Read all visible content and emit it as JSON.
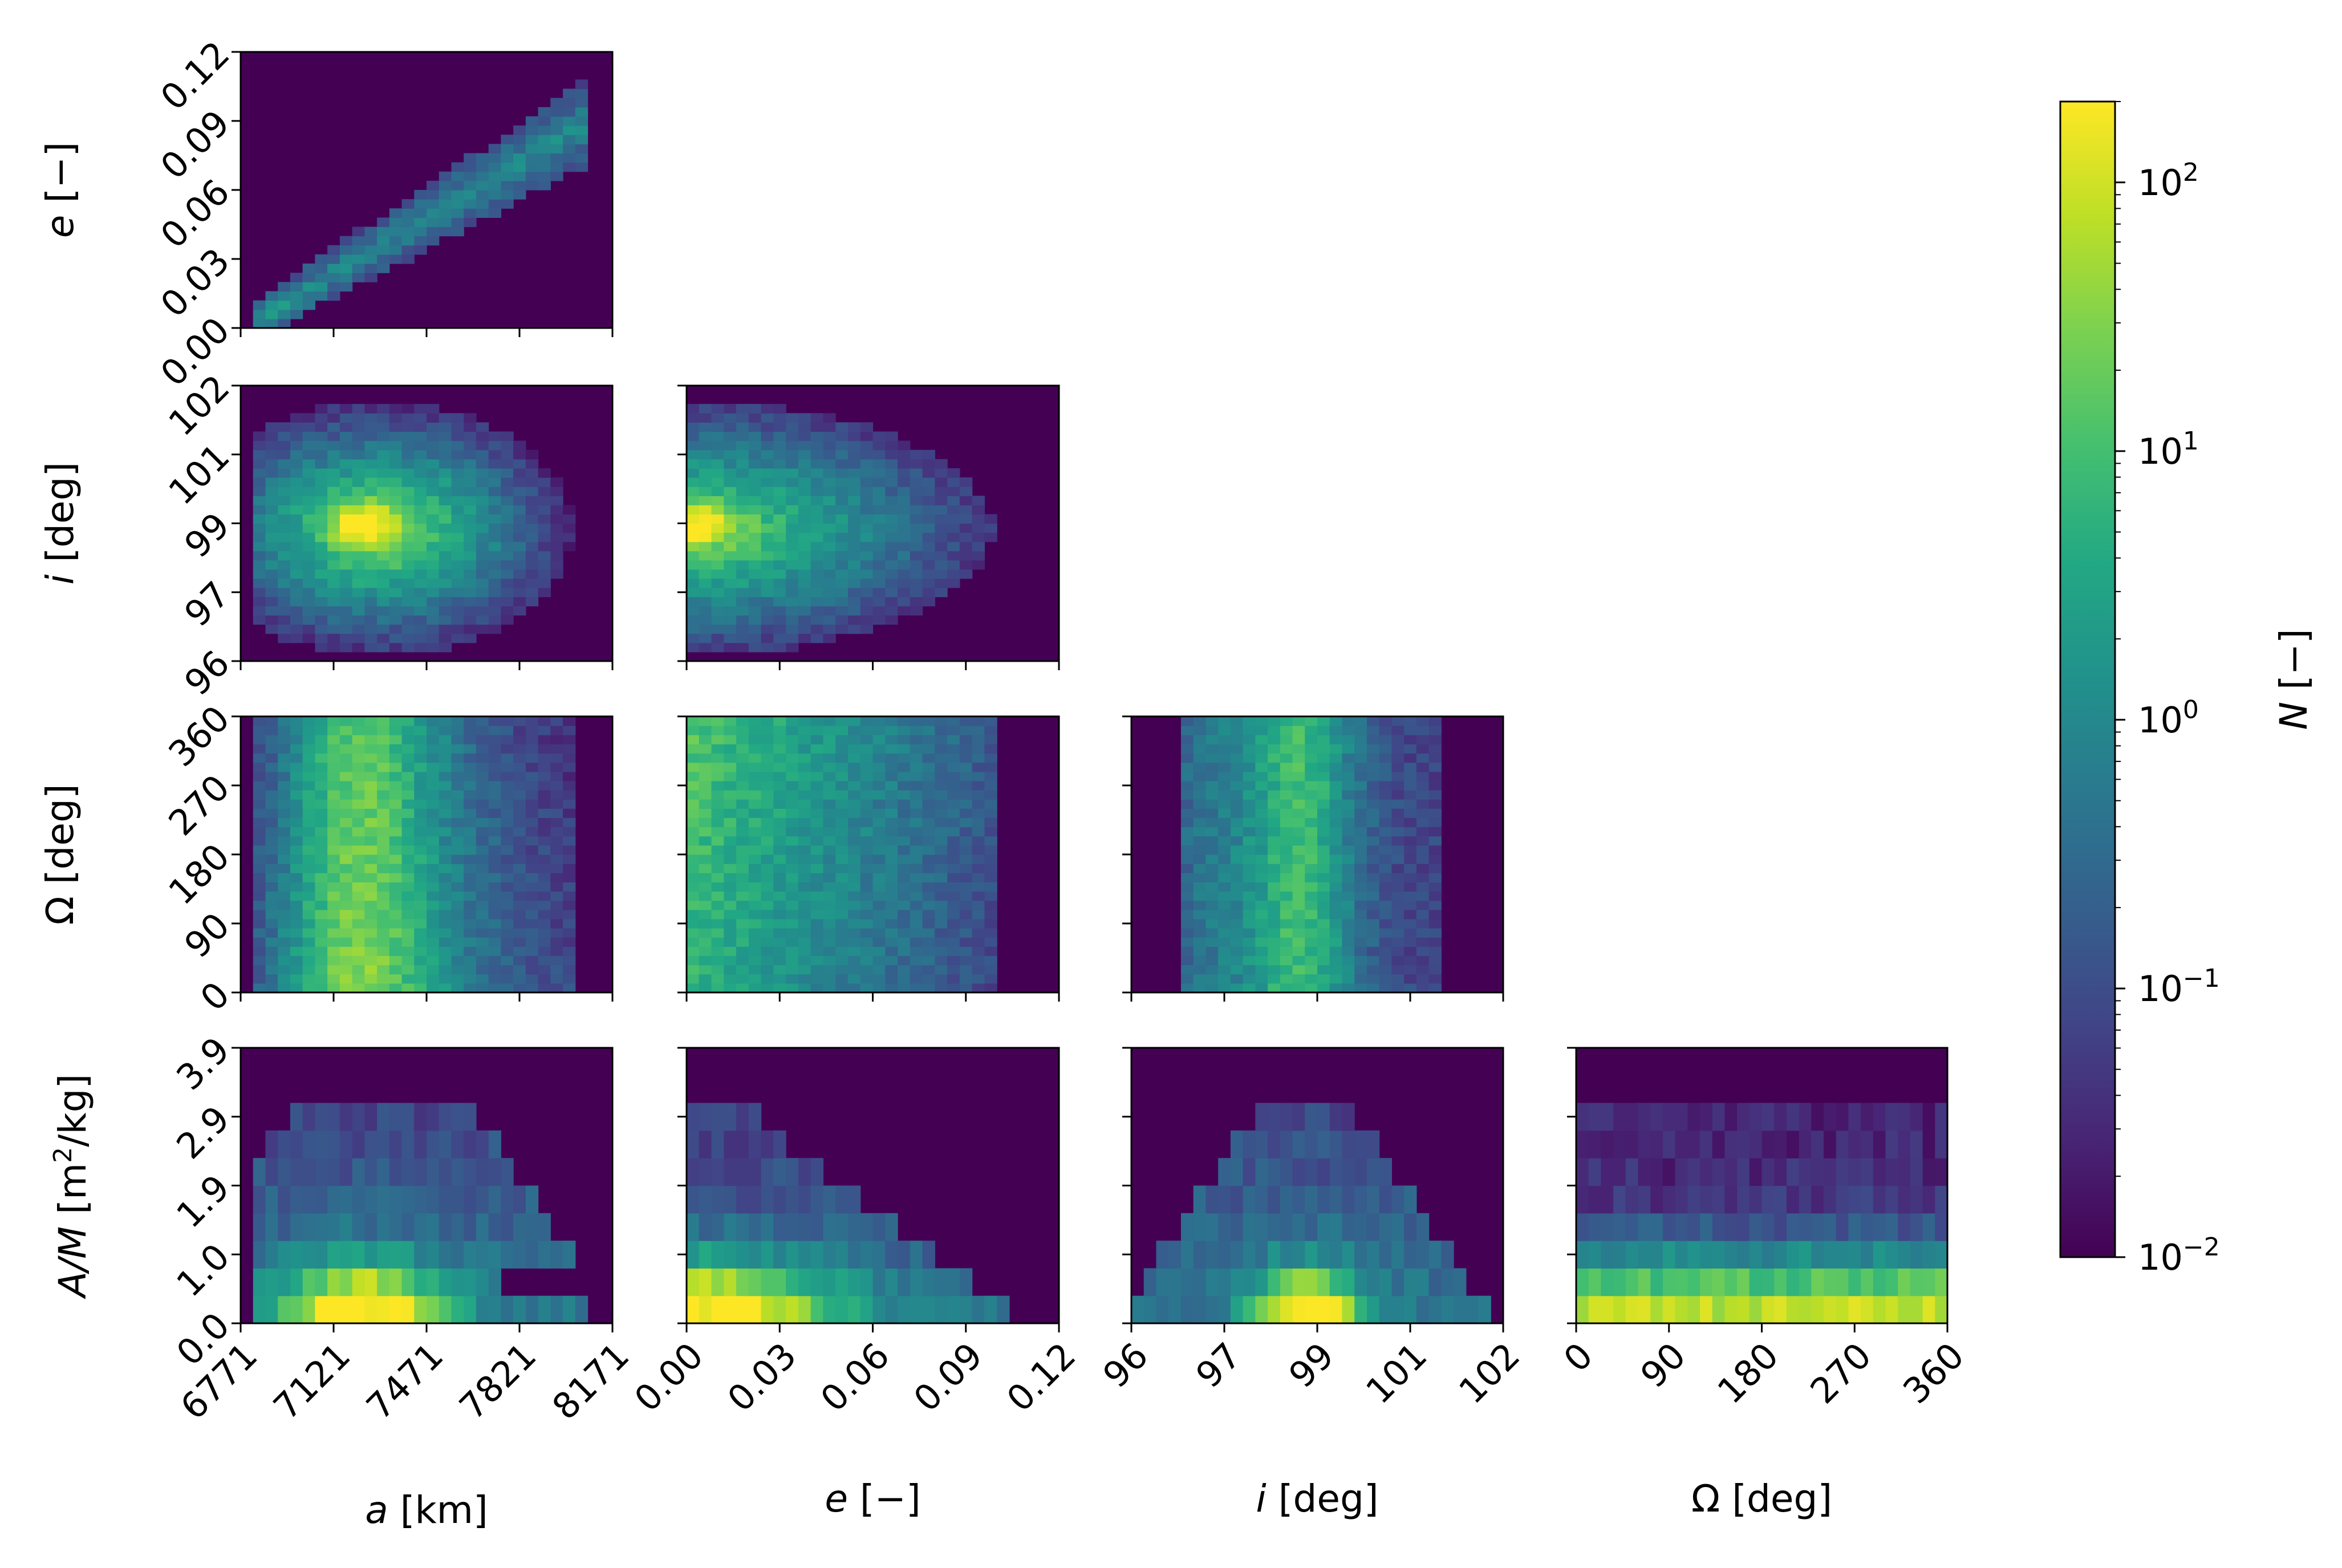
{
  "chart_data": {
    "type": "heatmap",
    "layout": "corner-plot",
    "variables": [
      {
        "key": "a",
        "label_italic": "a",
        "label_rest": " [km]",
        "range": [
          6771,
          8171
        ],
        "ticks": [
          "6771",
          "7121",
          "7471",
          "7821",
          "8171"
        ]
      },
      {
        "key": "e",
        "label_italic": "e",
        "label_rest": " [−]",
        "range": [
          0.0,
          0.12
        ],
        "ticks": [
          "0.00",
          "0.03",
          "0.06",
          "0.09",
          "0.12"
        ]
      },
      {
        "key": "i",
        "label_italic": "i",
        "label_rest": " [deg]",
        "range": [
          96,
          102
        ],
        "ticks": [
          "96",
          "97",
          "99",
          "101",
          "102"
        ],
        "tick_values": [
          96,
          97.2,
          98.8,
          100.8,
          102
        ]
      },
      {
        "key": "raan",
        "label_italic": "",
        "label_rest": "Ω [deg]",
        "range": [
          0,
          360
        ],
        "ticks": [
          "0",
          "90",
          "180",
          "270",
          "360"
        ]
      },
      {
        "key": "am",
        "label_italic": "A/M",
        "label_rest": " [m²/kg]",
        "range": [
          0.0,
          4.8
        ],
        "ticks": [
          "0.0",
          "1.0",
          "1.9",
          "2.9",
          "3.9"
        ]
      }
    ],
    "panels": [
      {
        "x": "a",
        "y": "e",
        "peak": [
          7130,
          0.006
        ],
        "structure": "diagonal band from low a/low e to high a/high e"
      },
      {
        "x": "a",
        "y": "i",
        "peak": [
          7130,
          98.8
        ]
      },
      {
        "x": "e",
        "y": "i",
        "peak": [
          0.008,
          98.8
        ]
      },
      {
        "x": "a",
        "y": "raan",
        "peak": [
          7130,
          40
        ]
      },
      {
        "x": "e",
        "y": "raan",
        "peak": [
          0.005,
          320
        ]
      },
      {
        "x": "i",
        "y": "raan",
        "peak": [
          98.8,
          60
        ]
      },
      {
        "x": "a",
        "y": "am",
        "peak": [
          7150,
          0.3
        ]
      },
      {
        "x": "e",
        "y": "am",
        "peak": [
          0.005,
          0.3
        ]
      },
      {
        "x": "i",
        "y": "am",
        "peak": [
          98.8,
          0.3
        ]
      },
      {
        "x": "raan",
        "y": "am",
        "peak": [
          60,
          0.2
        ]
      }
    ],
    "colorbar": {
      "label_italic": "N",
      "label_rest": " [−]",
      "scale": "log",
      "range": [
        0.01,
        200
      ],
      "ticks": [
        {
          "value": 0.01,
          "base": "10",
          "exp": "−2"
        },
        {
          "value": 0.1,
          "base": "10",
          "exp": "−1"
        },
        {
          "value": 1,
          "base": "10",
          "exp": "0"
        },
        {
          "value": 10,
          "base": "10",
          "exp": "1"
        },
        {
          "value": 100,
          "base": "10",
          "exp": "2"
        }
      ],
      "colormap": "viridis"
    },
    "grid": false
  }
}
